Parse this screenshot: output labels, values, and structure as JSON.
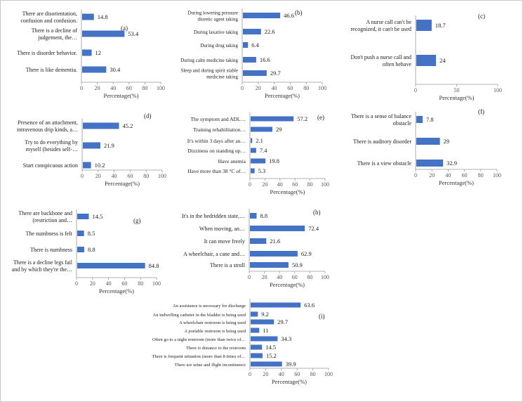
{
  "colors": {
    "bar": "#4472C4",
    "axis": "#9a9a9a"
  },
  "chart_data": [
    {
      "id": "a",
      "panel_label": "(a)",
      "type": "bar",
      "orientation": "horizontal",
      "categories": [
        [
          "There are disorientation,",
          "confusion and confusion."
        ],
        [
          "There is a decline of",
          "judgement, the…"
        ],
        [
          "There is disorder behavior."
        ],
        [
          "There is like dementia."
        ]
      ],
      "values": [
        14.8,
        53.4,
        12,
        30.4
      ],
      "xlabel": "Percentage(%)",
      "xlim": [
        0,
        100
      ],
      "xticks": [
        0,
        20,
        40,
        60,
        80,
        100
      ]
    },
    {
      "id": "b",
      "panel_label": "(b)",
      "type": "bar",
      "orientation": "horizontal",
      "categories": [
        [
          "During lowering pressure",
          "diuretic agent taking"
        ],
        [
          "During laxative taking"
        ],
        [
          "During drug taking"
        ],
        [
          "During calm medicine taking"
        ],
        [
          "Sleep and during spirit stable",
          "medicine taking"
        ]
      ],
      "values": [
        46.6,
        22.6,
        6.4,
        16.6,
        29.7
      ],
      "xlabel": "Percentage(%)",
      "xlim": [
        0,
        100
      ],
      "xticks": [
        0,
        20,
        40,
        60,
        80,
        100
      ]
    },
    {
      "id": "c",
      "panel_label": "(c)",
      "type": "bar",
      "orientation": "horizontal",
      "categories": [
        [
          "A nurse call can't be",
          "recognized, it can't be used"
        ],
        [
          "Don't push a nurse call and",
          "often behave"
        ]
      ],
      "values": [
        18.7,
        24
      ],
      "xlabel": "Percentage(%)",
      "xlim": [
        0,
        100
      ],
      "xticks": [
        0,
        50,
        100
      ]
    },
    {
      "id": "d",
      "panel_label": "(d)",
      "type": "bar",
      "orientation": "horizontal",
      "categories": [
        [
          "Presence of an attachment,",
          "intravenous drip kinds, a…"
        ],
        [
          "Try to do everything by",
          "myself (besides self-…"
        ],
        [
          "Start conspicuous action"
        ]
      ],
      "values": [
        45.2,
        21.9,
        10.2
      ],
      "xlabel": "Percentage(%)",
      "xlim": [
        0,
        100
      ],
      "xticks": [
        0,
        20,
        40,
        60,
        80,
        100
      ]
    },
    {
      "id": "e",
      "panel_label": "(e)",
      "type": "bar",
      "orientation": "horizontal",
      "categories": [
        [
          "The symptom and ADL…"
        ],
        [
          "Training rehabilitation…"
        ],
        [
          "It's within 3 days after an…"
        ],
        [
          "Dizziness on standing up…"
        ],
        [
          "Have anemia"
        ],
        [
          "Have more than 38 °C of…"
        ]
      ],
      "values": [
        57.2,
        29,
        2.1,
        7.4,
        19.8,
        5.3
      ],
      "xlabel": "Percentage(%)",
      "xlim": [
        0,
        100
      ],
      "xticks": [
        0,
        20,
        40,
        60,
        80,
        100
      ]
    },
    {
      "id": "f",
      "panel_label": "(f)",
      "type": "bar",
      "orientation": "horizontal",
      "categories": [
        [
          "There is a sense of balance",
          "obstacle"
        ],
        [
          "There is auditory disorder"
        ],
        [
          "There is a view obstacle"
        ]
      ],
      "values": [
        7.8,
        29,
        32.9
      ],
      "xlabel": "Percentage(%)",
      "xlim": [
        0,
        100
      ],
      "xticks": [
        0,
        20,
        40,
        60,
        80,
        100
      ]
    },
    {
      "id": "g",
      "panel_label": "(g)",
      "type": "bar",
      "orientation": "horizontal",
      "categories": [
        [
          "There are backbone and",
          "(restriction and…"
        ],
        [
          "The numbness is felt"
        ],
        [
          "There is numbness"
        ],
        [
          "There is a decline legs fail",
          "and by which they're the…"
        ]
      ],
      "values": [
        14.5,
        8.5,
        8.8,
        84.8
      ],
      "xlabel": "Percentage(%)",
      "xlim": [
        0,
        100
      ],
      "xticks": [
        0,
        20,
        40,
        60,
        80,
        100
      ]
    },
    {
      "id": "h",
      "panel_label": "(h)",
      "type": "bar",
      "orientation": "horizontal",
      "categories": [
        [
          "It's in the bedridden state,…"
        ],
        [
          "When moving, an…"
        ],
        [
          "It can move freely"
        ],
        [
          "A wheelchair, a cane and…"
        ],
        [
          "There is a stroll"
        ]
      ],
      "values": [
        8.8,
        72.4,
        21.6,
        62.9,
        50.9
      ],
      "xlabel": "Percentage(%)",
      "xlim": [
        0,
        100
      ],
      "xticks": [
        0,
        20,
        40,
        60,
        80,
        100
      ]
    },
    {
      "id": "i",
      "panel_label": "(i)",
      "type": "bar",
      "orientation": "horizontal",
      "categories": [
        [
          "An assistance is necessary for discharge"
        ],
        [
          "An indwelling catheter in the bladder is being used"
        ],
        [
          "A wheelchair restroom is being used"
        ],
        [
          "A portable restroom is being used"
        ],
        [
          "Often go to a night restroom (more than twice of…"
        ],
        [
          "There is distance to the restroom"
        ],
        [
          "There is frequent urination (more than 8 times of…"
        ],
        [
          "There are urine and flight incontinence"
        ]
      ],
      "values": [
        63.6,
        9.2,
        29.7,
        11,
        34.3,
        14.5,
        15.2,
        39.9
      ],
      "xlabel": "Percentage(%)",
      "xlim": [
        0,
        100
      ],
      "xticks": [
        0,
        20,
        40,
        60,
        80,
        100
      ]
    }
  ]
}
